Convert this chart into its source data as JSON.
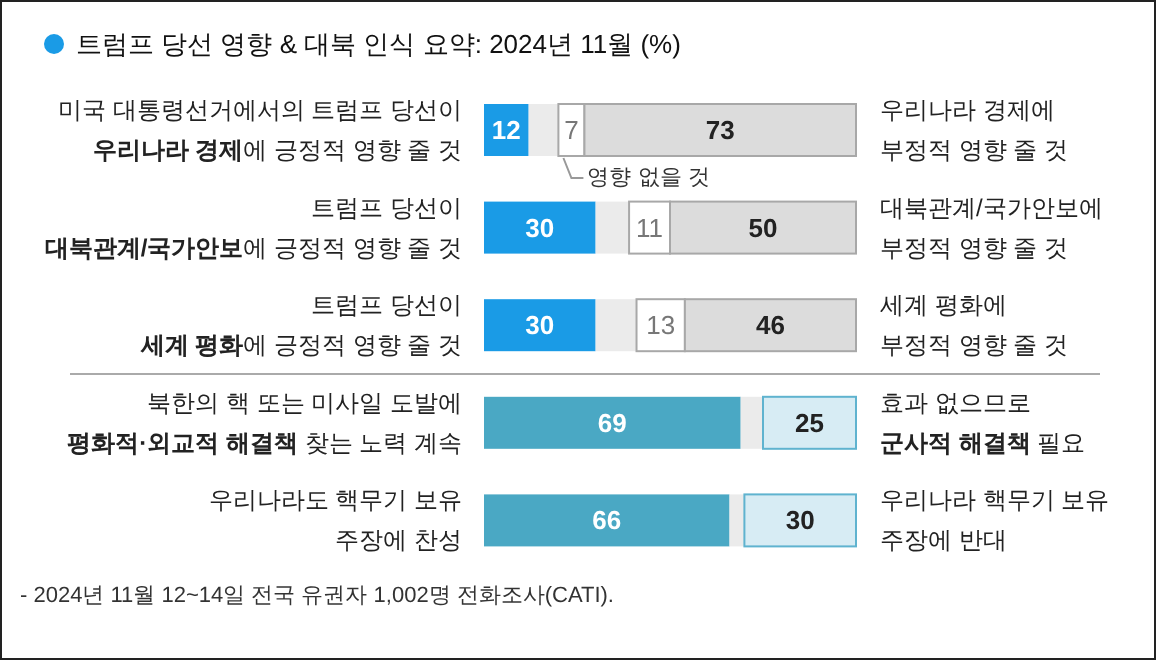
{
  "chart_data": {
    "type": "bar",
    "orientation": "horizontal",
    "stacked": true,
    "title": "트럼프 당선 영향 & 대북 인식 요약: 2024년 11월 (%)",
    "categories": [
      "미국 대통령선거에서의 트럼프 당선이\n**우리나라 경제**에 긍정적 영향 줄 것",
      "트럼프 당선이\n**대북관계/국가안보**에 긍정적 영향 줄 것",
      "트럼프 당선이\n**세계 평화**에 긍정적 영향 줄 것",
      "북한의 핵 또는 미사일 도발에\n**평화적·외교적 해결책** 찾는 노력 계속",
      "우리나라도 핵무기 보유\n주장에 찬성"
    ],
    "xlim": [
      0,
      100
    ],
    "series": [
      {
        "colors": [
          "#1a9be6",
          "#1a9be6",
          "#1a9be6",
          "#4aa8c4",
          "#4aa8c4"
        ],
        "values": [
          12,
          30,
          30,
          69,
          66
        ],
        "value_labels": [
          "12",
          "30",
          "30",
          "69",
          "66"
        ]
      },
      {
        "color": "#ebebeb",
        "values": [
          8,
          9,
          11,
          6,
          4
        ]
      },
      {
        "color": "#ffffff",
        "values": [
          7,
          11,
          13,
          null,
          null
        ],
        "value_labels": [
          "7",
          "11",
          "13",
          null,
          null
        ]
      },
      {
        "colors": [
          "#dcdcdc",
          "#dcdcdc",
          "#dcdcdc",
          "#d7ecf4",
          "#d7ecf4"
        ],
        "values": [
          73,
          50,
          46,
          25,
          30
        ],
        "value_labels": [
          "73",
          "50",
          "46",
          "25",
          "30"
        ]
      }
    ],
    "annotations": [
      "우리나라 경제에\n부정적 영향 줄 것",
      "대북관계/국가안보에\n부정적 영향 줄 것",
      "세계 평화에\n부정적 영향 줄 것",
      "효과 없으므로\n**군사적 해결책** 필요",
      "우리나라 핵무기 보유\n주장에 반대",
      "영향 없을 것",
      "- 2024년 11월 12~14일 전국 유권자 1,002명 전화조사(CATI)."
    ]
  }
}
